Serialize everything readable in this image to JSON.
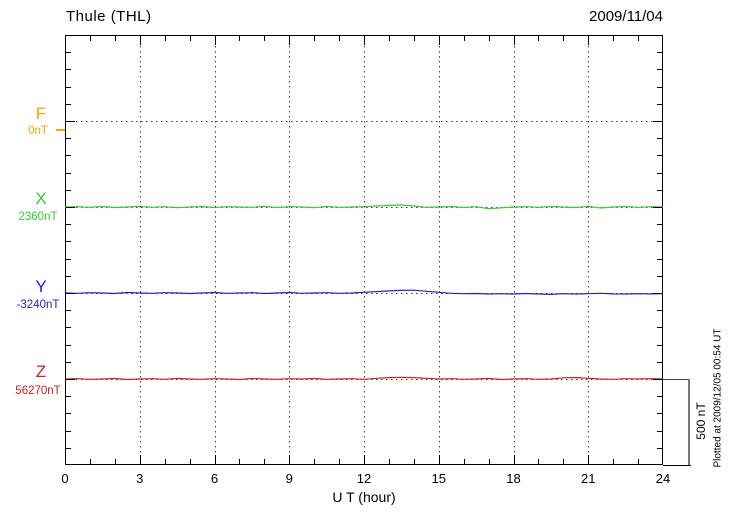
{
  "header": {
    "title": "Thule (THL)",
    "date": "2009/11/04"
  },
  "x_axis": {
    "label": "U T (hour)",
    "ticks": [
      0,
      3,
      6,
      9,
      12,
      15,
      18,
      21,
      24
    ]
  },
  "scale_bar": {
    "label": "500 nT",
    "span_nT": 500
  },
  "plot_note": "Plotted at 2009/12/05 00:54 UT",
  "colors": {
    "F": "#ffa000",
    "X": "#33cc33",
    "Y": "#2222cc",
    "Z": "#cc2222",
    "grid": "#444444",
    "axis": "#000000"
  },
  "series_labels": {
    "F": {
      "letter": "F",
      "value": "0nT"
    },
    "X": {
      "letter": "X",
      "value": "2360nT"
    },
    "Y": {
      "letter": "Y",
      "value": "-3240nT"
    },
    "Z": {
      "letter": "Z",
      "value": "56270nT"
    }
  },
  "chart_data": {
    "type": "line",
    "title": "Thule (THL) magnetogram",
    "date": "2009/11/04",
    "xlabel": "U T (hour)",
    "xlim": [
      0,
      24
    ],
    "x_ticks": [
      0,
      3,
      6,
      9,
      12,
      15,
      18,
      21,
      24
    ],
    "grid": "vertical-dotted-every-3h",
    "y_scale_bar_nT": 500,
    "x_start_hour": 0,
    "x_step_hour": 0.5,
    "series": [
      {
        "name": "F",
        "baseline_nT": 0,
        "color": "#ffa000",
        "offsets_nT": null,
        "note": "baseline shown as dotted line only, no data trace"
      },
      {
        "name": "X",
        "baseline_nT": 2360,
        "color": "#33cc33",
        "offsets_nT": [
          0,
          2,
          -2,
          3,
          -3,
          0,
          4,
          -2,
          2,
          -4,
          0,
          3,
          -3,
          2,
          0,
          -2,
          4,
          -3,
          2,
          0,
          -4,
          3,
          -2,
          0,
          2,
          6,
          9,
          12,
          6,
          -2,
          0,
          3,
          -3,
          2,
          -10,
          -5,
          0,
          2,
          -2,
          3,
          0,
          -3,
          4,
          -6,
          0,
          3,
          -2,
          2,
          0
        ]
      },
      {
        "name": "Y",
        "baseline_nT": -3240,
        "color": "#2222cc",
        "offsets_nT": [
          0,
          -2,
          2,
          0,
          -3,
          3,
          0,
          -2,
          2,
          0,
          -3,
          0,
          3,
          -2,
          0,
          2,
          -3,
          0,
          3,
          -2,
          0,
          2,
          -2,
          0,
          4,
          8,
          12,
          15,
          16,
          10,
          4,
          -2,
          -4,
          -3,
          -6,
          -4,
          -6,
          -3,
          -6,
          -8,
          -4,
          -6,
          -4,
          -2,
          -5,
          -6,
          -4,
          -5,
          -4
        ]
      },
      {
        "name": "Z",
        "baseline_nT": 56270,
        "color": "#cc2222",
        "offsets_nT": [
          0,
          2,
          -2,
          0,
          3,
          -3,
          0,
          2,
          -2,
          3,
          0,
          -2,
          2,
          0,
          -3,
          3,
          0,
          -2,
          2,
          0,
          3,
          -2,
          0,
          2,
          -2,
          4,
          8,
          10,
          8,
          4,
          0,
          2,
          -2,
          0,
          3,
          -3,
          0,
          2,
          -2,
          0,
          7,
          9,
          4,
          0,
          -2,
          2,
          0,
          2,
          0
        ]
      }
    ]
  }
}
